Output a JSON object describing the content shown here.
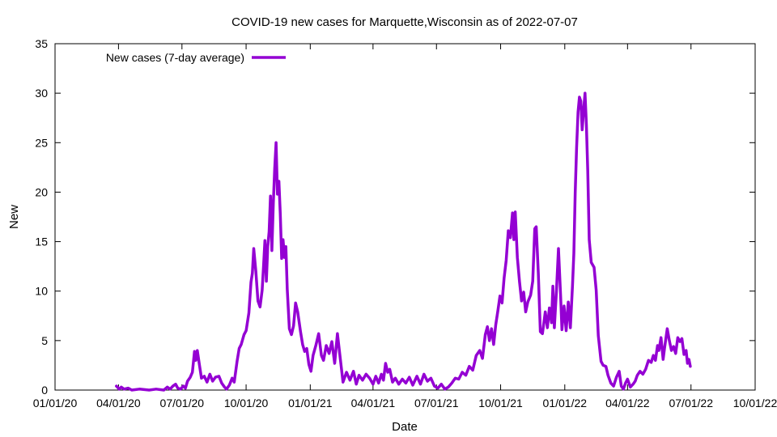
{
  "chart_data": {
    "type": "line",
    "title": "COVID-19 new cases for Marquette,Wisconsin as of 2022-07-07",
    "xlabel": "Date",
    "ylabel": "New",
    "grid": false,
    "legend_position": "top-left",
    "xlim": [
      "2020-01-01",
      "2022-10-01"
    ],
    "ylim": [
      0,
      35
    ],
    "x_ticks": [
      "2020-01-01",
      "2020-04-01",
      "2020-07-01",
      "2020-10-01",
      "2021-01-01",
      "2021-04-01",
      "2021-07-01",
      "2021-10-01",
      "2022-01-01",
      "2022-04-01",
      "2022-07-01",
      "2022-10-01"
    ],
    "x_tick_labels": [
      "01/01/20",
      "04/01/20",
      "07/01/20",
      "10/01/20",
      "01/01/21",
      "04/01/21",
      "07/01/21",
      "10/01/21",
      "01/01/22",
      "04/01/22",
      "07/01/22",
      "10/01/22"
    ],
    "y_ticks": [
      0,
      5,
      10,
      15,
      20,
      25,
      30,
      35
    ],
    "y_tick_labels": [
      "0",
      "5",
      "10",
      "15",
      "20",
      "25",
      "30",
      "35"
    ],
    "series": [
      {
        "name": "New cases (7-day average)",
        "color": "#9400d3",
        "points": [
          [
            "2020-03-29",
            0.4
          ],
          [
            "2020-04-02",
            0.1
          ],
          [
            "2020-04-05",
            0.3
          ],
          [
            "2020-04-09",
            0.1
          ],
          [
            "2020-04-15",
            0.2
          ],
          [
            "2020-04-20",
            0.0
          ],
          [
            "2020-05-01",
            0.1
          ],
          [
            "2020-05-15",
            0.0
          ],
          [
            "2020-05-25",
            0.1
          ],
          [
            "2020-06-05",
            0.0
          ],
          [
            "2020-06-10",
            0.3
          ],
          [
            "2020-06-14",
            0.1
          ],
          [
            "2020-06-18",
            0.4
          ],
          [
            "2020-06-22",
            0.6
          ],
          [
            "2020-06-25",
            0.2
          ],
          [
            "2020-06-29",
            0.1
          ],
          [
            "2020-07-03",
            0.4
          ],
          [
            "2020-07-06",
            0.2
          ],
          [
            "2020-07-09",
            0.9
          ],
          [
            "2020-07-13",
            1.3
          ],
          [
            "2020-07-16",
            1.8
          ],
          [
            "2020-07-19",
            3.9
          ],
          [
            "2020-07-21",
            3.0
          ],
          [
            "2020-07-23",
            4.0
          ],
          [
            "2020-07-26",
            2.6
          ],
          [
            "2020-07-29",
            1.2
          ],
          [
            "2020-08-02",
            1.4
          ],
          [
            "2020-08-06",
            0.8
          ],
          [
            "2020-08-10",
            1.6
          ],
          [
            "2020-08-14",
            0.9
          ],
          [
            "2020-08-18",
            1.3
          ],
          [
            "2020-08-23",
            1.4
          ],
          [
            "2020-08-27",
            0.7
          ],
          [
            "2020-08-31",
            0.3
          ],
          [
            "2020-09-03",
            0.1
          ],
          [
            "2020-09-07",
            0.5
          ],
          [
            "2020-09-11",
            1.2
          ],
          [
            "2020-09-14",
            0.8
          ],
          [
            "2020-09-18",
            2.9
          ],
          [
            "2020-09-21",
            4.2
          ],
          [
            "2020-09-24",
            4.6
          ],
          [
            "2020-09-28",
            5.6
          ],
          [
            "2020-10-01",
            6.0
          ],
          [
            "2020-10-05",
            7.8
          ],
          [
            "2020-10-08",
            10.9
          ],
          [
            "2020-10-10",
            11.8
          ],
          [
            "2020-10-12",
            14.3
          ],
          [
            "2020-10-15",
            12.0
          ],
          [
            "2020-10-18",
            9.0
          ],
          [
            "2020-10-21",
            8.4
          ],
          [
            "2020-10-24",
            10.1
          ],
          [
            "2020-10-26",
            12.5
          ],
          [
            "2020-10-28",
            15.1
          ],
          [
            "2020-10-30",
            11.0
          ],
          [
            "2020-11-01",
            14.5
          ],
          [
            "2020-11-03",
            16.0
          ],
          [
            "2020-11-05",
            19.6
          ],
          [
            "2020-11-07",
            14.1
          ],
          [
            "2020-11-09",
            18.9
          ],
          [
            "2020-11-11",
            22.4
          ],
          [
            "2020-11-13",
            25.0
          ],
          [
            "2020-11-15",
            19.8
          ],
          [
            "2020-11-17",
            21.1
          ],
          [
            "2020-11-19",
            17.8
          ],
          [
            "2020-11-21",
            13.3
          ],
          [
            "2020-11-23",
            15.2
          ],
          [
            "2020-11-25",
            13.4
          ],
          [
            "2020-11-27",
            14.5
          ],
          [
            "2020-11-29",
            10.2
          ],
          [
            "2020-12-02",
            6.2
          ],
          [
            "2020-12-05",
            5.6
          ],
          [
            "2020-12-08",
            6.5
          ],
          [
            "2020-12-11",
            8.8
          ],
          [
            "2020-12-14",
            7.9
          ],
          [
            "2020-12-18",
            5.9
          ],
          [
            "2020-12-21",
            4.6
          ],
          [
            "2020-12-24",
            3.9
          ],
          [
            "2020-12-27",
            4.2
          ],
          [
            "2020-12-30",
            2.6
          ],
          [
            "2021-01-02",
            1.9
          ],
          [
            "2021-01-05",
            3.5
          ],
          [
            "2021-01-09",
            4.5
          ],
          [
            "2021-01-13",
            5.7
          ],
          [
            "2021-01-17",
            3.5
          ],
          [
            "2021-01-20",
            3.0
          ],
          [
            "2021-01-24",
            4.5
          ],
          [
            "2021-01-28",
            3.7
          ],
          [
            "2021-02-01",
            4.9
          ],
          [
            "2021-02-05",
            2.7
          ],
          [
            "2021-02-09",
            5.7
          ],
          [
            "2021-02-13",
            3.2
          ],
          [
            "2021-02-17",
            0.8
          ],
          [
            "2021-02-22",
            1.8
          ],
          [
            "2021-02-27",
            1.0
          ],
          [
            "2021-03-04",
            1.9
          ],
          [
            "2021-03-08",
            0.6
          ],
          [
            "2021-03-12",
            1.5
          ],
          [
            "2021-03-17",
            1.0
          ],
          [
            "2021-03-22",
            1.6
          ],
          [
            "2021-03-27",
            1.2
          ],
          [
            "2021-04-01",
            0.6
          ],
          [
            "2021-04-05",
            1.4
          ],
          [
            "2021-04-09",
            0.7
          ],
          [
            "2021-04-13",
            1.6
          ],
          [
            "2021-04-16",
            1.0
          ],
          [
            "2021-04-19",
            2.7
          ],
          [
            "2021-04-22",
            1.8
          ],
          [
            "2021-04-25",
            2.1
          ],
          [
            "2021-04-29",
            0.8
          ],
          [
            "2021-05-03",
            1.2
          ],
          [
            "2021-05-08",
            0.6
          ],
          [
            "2021-05-13",
            1.1
          ],
          [
            "2021-05-18",
            0.7
          ],
          [
            "2021-05-23",
            1.3
          ],
          [
            "2021-05-28",
            0.5
          ],
          [
            "2021-06-03",
            1.4
          ],
          [
            "2021-06-08",
            0.6
          ],
          [
            "2021-06-13",
            1.6
          ],
          [
            "2021-06-18",
            0.9
          ],
          [
            "2021-06-23",
            1.2
          ],
          [
            "2021-06-28",
            0.4
          ],
          [
            "2021-07-03",
            0.2
          ],
          [
            "2021-07-08",
            0.6
          ],
          [
            "2021-07-13",
            0.1
          ],
          [
            "2021-07-18",
            0.3
          ],
          [
            "2021-07-23",
            0.7
          ],
          [
            "2021-07-28",
            1.2
          ],
          [
            "2021-08-02",
            1.1
          ],
          [
            "2021-08-07",
            1.8
          ],
          [
            "2021-08-12",
            1.5
          ],
          [
            "2021-08-17",
            2.4
          ],
          [
            "2021-08-22",
            2.0
          ],
          [
            "2021-08-27",
            3.5
          ],
          [
            "2021-09-01",
            4.0
          ],
          [
            "2021-09-05",
            3.2
          ],
          [
            "2021-09-09",
            5.6
          ],
          [
            "2021-09-12",
            6.4
          ],
          [
            "2021-09-15",
            5.0
          ],
          [
            "2021-09-18",
            6.2
          ],
          [
            "2021-09-21",
            4.6
          ],
          [
            "2021-09-24",
            6.6
          ],
          [
            "2021-09-27",
            8.0
          ],
          [
            "2021-09-30",
            9.5
          ],
          [
            "2021-10-03",
            8.8
          ],
          [
            "2021-10-06",
            11.3
          ],
          [
            "2021-10-09",
            13.1
          ],
          [
            "2021-10-12",
            16.1
          ],
          [
            "2021-10-15",
            15.4
          ],
          [
            "2021-10-18",
            17.9
          ],
          [
            "2021-10-20",
            15.2
          ],
          [
            "2021-10-22",
            18.0
          ],
          [
            "2021-10-25",
            13.4
          ],
          [
            "2021-10-28",
            11.0
          ],
          [
            "2021-10-31",
            9.0
          ],
          [
            "2021-11-03",
            9.9
          ],
          [
            "2021-11-06",
            7.9
          ],
          [
            "2021-11-09",
            8.9
          ],
          [
            "2021-11-13",
            9.6
          ],
          [
            "2021-11-16",
            11.0
          ],
          [
            "2021-11-19",
            16.3
          ],
          [
            "2021-11-21",
            16.5
          ],
          [
            "2021-11-24",
            11.8
          ],
          [
            "2021-11-27",
            5.9
          ],
          [
            "2021-11-30",
            5.7
          ],
          [
            "2021-12-04",
            7.9
          ],
          [
            "2021-12-07",
            6.3
          ],
          [
            "2021-12-10",
            8.3
          ],
          [
            "2021-12-13",
            6.8
          ],
          [
            "2021-12-15",
            10.5
          ],
          [
            "2021-12-17",
            6.3
          ],
          [
            "2021-12-20",
            10.0
          ],
          [
            "2021-12-23",
            14.3
          ],
          [
            "2021-12-26",
            9.6
          ],
          [
            "2021-12-28",
            6.1
          ],
          [
            "2021-12-31",
            8.5
          ],
          [
            "2022-01-03",
            6.0
          ],
          [
            "2022-01-06",
            8.9
          ],
          [
            "2022-01-09",
            6.3
          ],
          [
            "2022-01-12",
            10.5
          ],
          [
            "2022-01-14",
            13.8
          ],
          [
            "2022-01-16",
            20.0
          ],
          [
            "2022-01-18",
            24.5
          ],
          [
            "2022-01-20",
            28.1
          ],
          [
            "2022-01-22",
            29.6
          ],
          [
            "2022-01-24",
            29.2
          ],
          [
            "2022-01-26",
            26.3
          ],
          [
            "2022-01-28",
            28.3
          ],
          [
            "2022-01-30",
            30.0
          ],
          [
            "2022-02-01",
            26.8
          ],
          [
            "2022-02-03",
            22.1
          ],
          [
            "2022-02-05",
            15.2
          ],
          [
            "2022-02-08",
            12.9
          ],
          [
            "2022-02-12",
            12.4
          ],
          [
            "2022-02-15",
            10.1
          ],
          [
            "2022-02-18",
            5.5
          ],
          [
            "2022-02-22",
            2.9
          ],
          [
            "2022-02-25",
            2.5
          ],
          [
            "2022-03-01",
            2.4
          ],
          [
            "2022-03-04",
            1.5
          ],
          [
            "2022-03-08",
            0.7
          ],
          [
            "2022-03-12",
            0.4
          ],
          [
            "2022-03-16",
            1.3
          ],
          [
            "2022-03-20",
            1.9
          ],
          [
            "2022-03-23",
            0.4
          ],
          [
            "2022-03-26",
            0.1
          ],
          [
            "2022-03-29",
            0.7
          ],
          [
            "2022-04-01",
            1.1
          ],
          [
            "2022-04-05",
            0.3
          ],
          [
            "2022-04-09",
            0.6
          ],
          [
            "2022-04-12",
            0.9
          ],
          [
            "2022-04-15",
            1.5
          ],
          [
            "2022-04-19",
            1.9
          ],
          [
            "2022-04-23",
            1.6
          ],
          [
            "2022-04-27",
            2.1
          ],
          [
            "2022-05-01",
            3.0
          ],
          [
            "2022-05-05",
            2.8
          ],
          [
            "2022-05-08",
            3.5
          ],
          [
            "2022-05-11",
            3.0
          ],
          [
            "2022-05-14",
            4.5
          ],
          [
            "2022-05-16",
            4.0
          ],
          [
            "2022-05-19",
            5.3
          ],
          [
            "2022-05-22",
            3.1
          ],
          [
            "2022-05-24",
            4.2
          ],
          [
            "2022-05-26",
            5.2
          ],
          [
            "2022-05-28",
            6.2
          ],
          [
            "2022-05-31",
            5.0
          ],
          [
            "2022-06-03",
            4.0
          ],
          [
            "2022-06-06",
            4.4
          ],
          [
            "2022-06-09",
            3.7
          ],
          [
            "2022-06-12",
            5.3
          ],
          [
            "2022-06-15",
            4.9
          ],
          [
            "2022-06-18",
            5.2
          ],
          [
            "2022-06-21",
            3.6
          ],
          [
            "2022-06-24",
            4.0
          ],
          [
            "2022-06-26",
            2.7
          ],
          [
            "2022-06-28",
            3.1
          ],
          [
            "2022-06-30",
            2.4
          ]
        ]
      }
    ]
  }
}
